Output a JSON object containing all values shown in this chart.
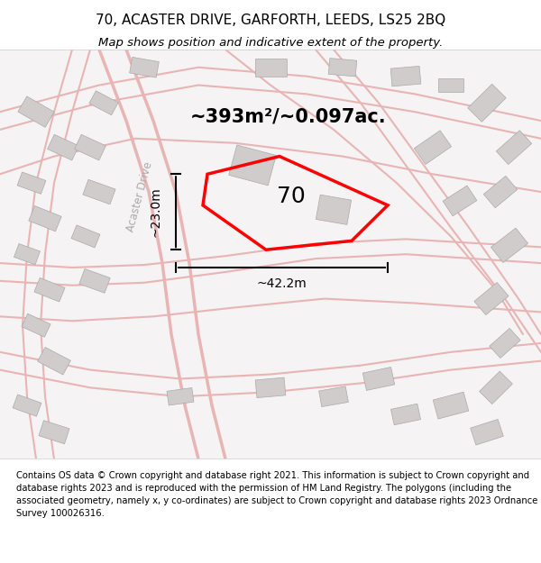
{
  "title_line1": "70, ACASTER DRIVE, GARFORTH, LEEDS, LS25 2BQ",
  "title_line2": "Map shows position and indicative extent of the property.",
  "footer_text": "Contains OS data © Crown copyright and database right 2021. This information is subject to Crown copyright and database rights 2023 and is reproduced with the permission of HM Land Registry. The polygons (including the associated geometry, namely x, y co-ordinates) are subject to Crown copyright and database rights 2023 Ordnance Survey 100026316.",
  "area_label": "~393m²/~0.097ac.",
  "property_number": "70",
  "dim_width": "~42.2m",
  "dim_height": "~23.0m",
  "bg_color": "#f0eeee",
  "map_bg": "#f5f3f3",
  "road_color_light": "#e8b4b4",
  "building_color": "#d0cccc",
  "property_outline_color": "#ff0000",
  "dim_line_color": "#000000",
  "road_label": "Acaster Drive",
  "fig_width": 6.0,
  "fig_height": 6.25
}
